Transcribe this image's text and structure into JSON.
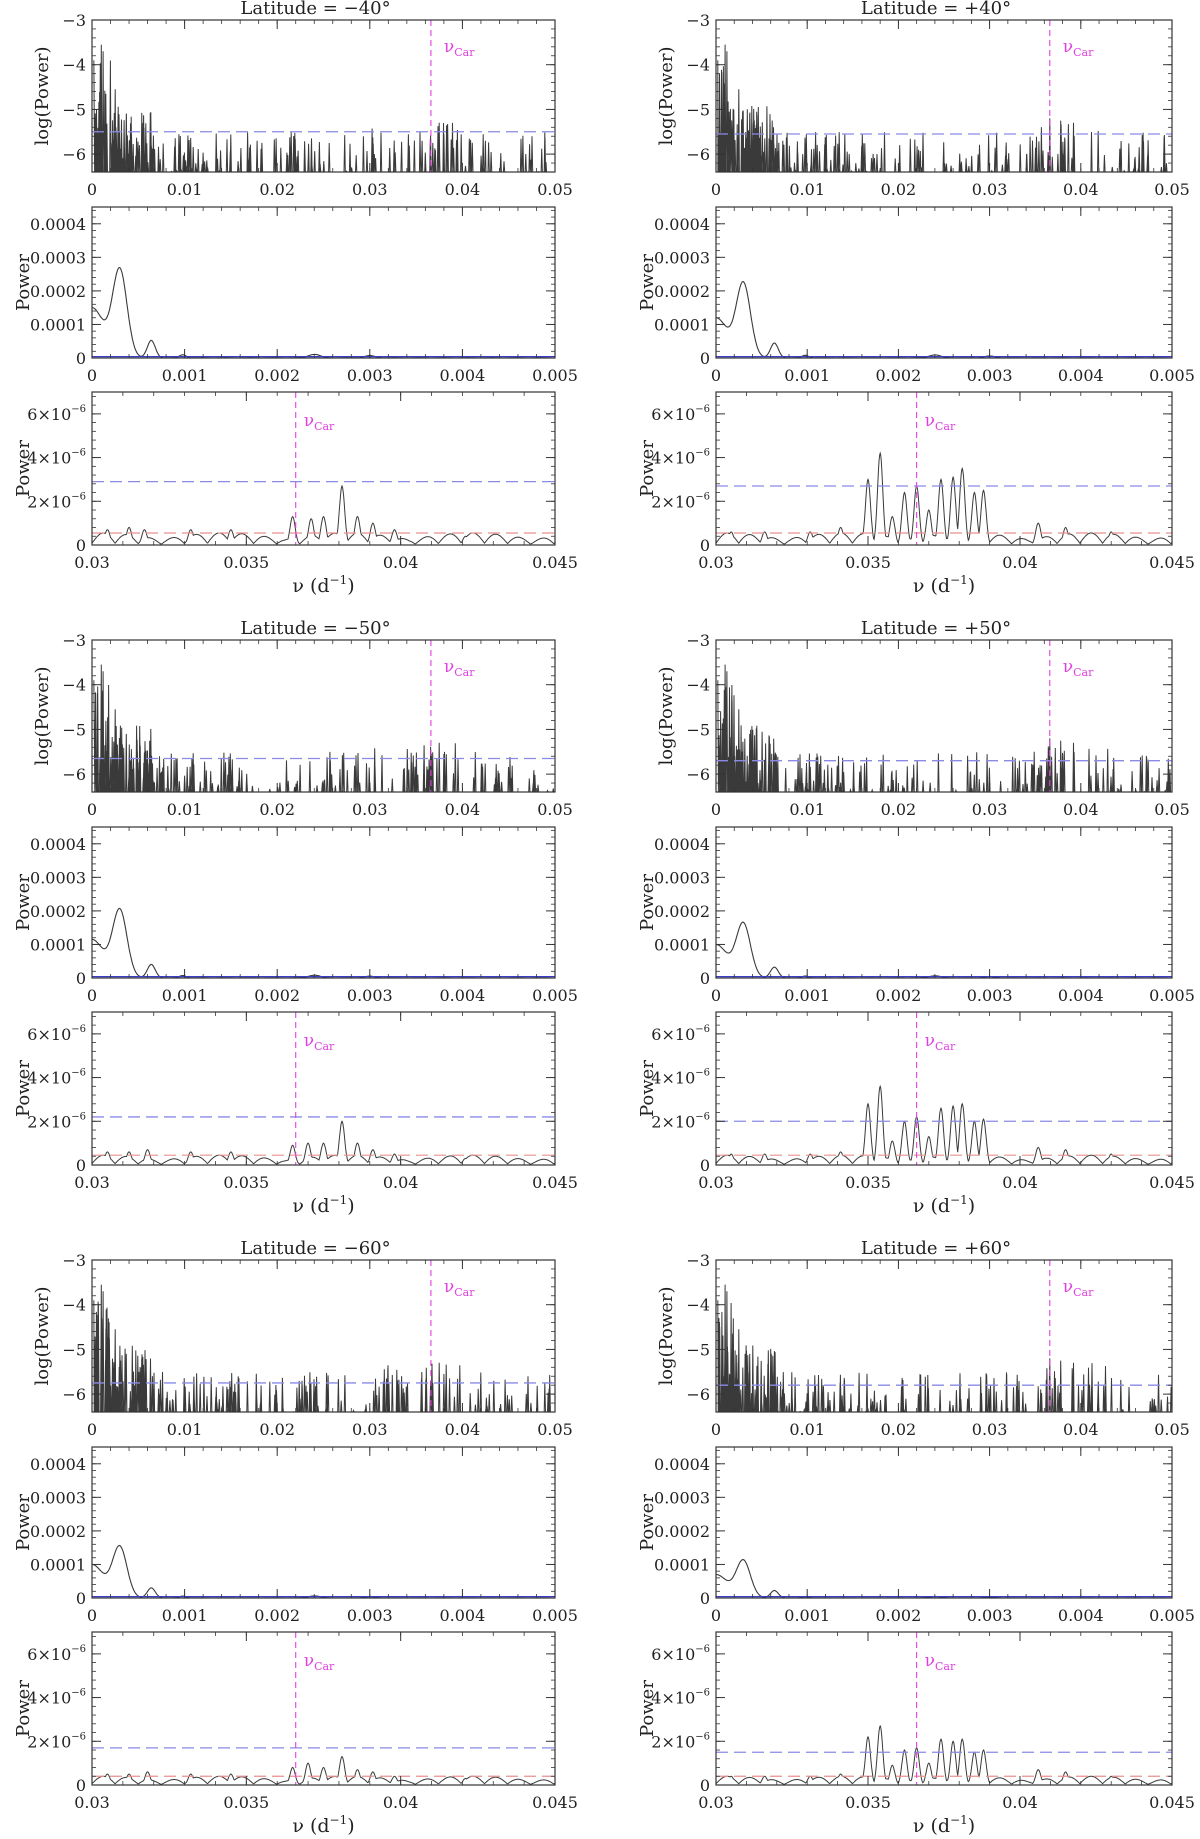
{
  "colors": {
    "frame": "#333333",
    "trace": "#3a3a3a",
    "nu_car": "#e040e0",
    "threshold_blue": "#8a8ae6",
    "threshold_red": "#e89090",
    "baseline_blue": "#3a3acc"
  },
  "chart_data": {
    "type": "line",
    "nu_car_label": "ν",
    "nu_car_sub": "Car",
    "nu_car_value": 0.0366,
    "x_axis_label": {
      "symbol": "ν",
      "text": " (d",
      "exp": "−1",
      "close": ")"
    },
    "ylabel_log": "log(Power)",
    "ylabel_lin": "Power",
    "panel_types": {
      "log": {
        "xlim": [
          0,
          0.05
        ],
        "ylim": [
          -6.4,
          -3
        ],
        "xticks": [
          "0",
          "0.01",
          "0.02",
          "0.03",
          "0.04",
          "0.05"
        ],
        "xtick_values": [
          0,
          0.01,
          0.02,
          0.03,
          0.04,
          0.05
        ],
        "yticks": [
          "−3",
          "−4",
          "−5",
          "−6"
        ],
        "ytick_values": [
          -3,
          -4,
          -5,
          -6
        ]
      },
      "low": {
        "xlim": [
          0,
          0.005
        ],
        "ylim": [
          0,
          0.00045
        ],
        "xticks": [
          "0",
          "0.001",
          "0.002",
          "0.003",
          "0.004",
          "0.005"
        ],
        "xtick_values": [
          0,
          0.001,
          0.002,
          0.003,
          0.004,
          0.005
        ],
        "yticks": [
          "0",
          "0.0001",
          "0.0002",
          "0.0003",
          "0.0004"
        ],
        "ytick_values": [
          0,
          0.0001,
          0.0002,
          0.0003,
          0.0004
        ]
      },
      "zoom": {
        "xlim": [
          0.03,
          0.045
        ],
        "ylim": [
          0,
          7e-06
        ],
        "xticks": [
          "0.03",
          "0.035",
          "0.04",
          "0.045"
        ],
        "xtick_values": [
          0.03,
          0.035,
          0.04,
          0.045
        ],
        "yticks": [
          "0",
          "2×10",
          "4×10",
          "6×10"
        ],
        "ytick_exp": "−6",
        "ytick_values": [
          0,
          2e-06,
          4e-06,
          6e-06
        ]
      }
    },
    "groups": [
      {
        "col": 0,
        "row": 0,
        "title": "Latitude = −40°",
        "log_threshold": -5.5,
        "low_peak": 0.00026,
        "low_start": 0.00015,
        "zoom_threshold": 2.9e-06,
        "zoom_red": 5.5e-07,
        "zoom_peaks": [
          [
            0.0305,
            7e-07
          ],
          [
            0.0312,
            8e-07
          ],
          [
            0.0317,
            7e-07
          ],
          [
            0.0332,
            7e-07
          ],
          [
            0.0345,
            7e-07
          ],
          [
            0.0365,
            1.3e-06
          ],
          [
            0.0371,
            1.2e-06
          ],
          [
            0.0375,
            1.3e-06
          ],
          [
            0.0381,
            2.7e-06
          ],
          [
            0.0386,
            1.3e-06
          ],
          [
            0.0391,
            1e-06
          ],
          [
            0.0398,
            7e-07
          ],
          [
            0.0421,
            4e-07
          ]
        ]
      },
      {
        "col": 1,
        "row": 0,
        "title": "Latitude = +40°",
        "log_threshold": -5.55,
        "low_peak": 0.00022,
        "low_start": 0.00012,
        "zoom_threshold": 2.7e-06,
        "zoom_red": 5.5e-07,
        "zoom_peaks": [
          [
            0.0305,
            6e-07
          ],
          [
            0.0316,
            6e-07
          ],
          [
            0.0331,
            6e-07
          ],
          [
            0.0341,
            8e-07
          ],
          [
            0.035,
            3e-06
          ],
          [
            0.0354,
            4.2e-06
          ],
          [
            0.0358,
            1.3e-06
          ],
          [
            0.0362,
            2.4e-06
          ],
          [
            0.0366,
            2.7e-06
          ],
          [
            0.037,
            1.6e-06
          ],
          [
            0.0374,
            3e-06
          ],
          [
            0.0378,
            3.1e-06
          ],
          [
            0.0381,
            3.5e-06
          ],
          [
            0.0385,
            2.4e-06
          ],
          [
            0.0388,
            2.5e-06
          ],
          [
            0.0406,
            1e-06
          ],
          [
            0.0415,
            8e-07
          ],
          [
            0.043,
            6e-07
          ]
        ]
      },
      {
        "col": 0,
        "row": 1,
        "title": "Latitude = −50°",
        "log_threshold": -5.65,
        "low_peak": 0.0002,
        "low_start": 0.000115,
        "zoom_threshold": 2.2e-06,
        "zoom_red": 4.5e-07,
        "zoom_peaks": [
          [
            0.0305,
            6e-07
          ],
          [
            0.0312,
            6e-07
          ],
          [
            0.0318,
            7e-07
          ],
          [
            0.0332,
            6e-07
          ],
          [
            0.0345,
            6e-07
          ],
          [
            0.0365,
            9e-07
          ],
          [
            0.037,
            1e-06
          ],
          [
            0.0375,
            1e-06
          ],
          [
            0.0381,
            2e-06
          ],
          [
            0.0386,
            1e-06
          ],
          [
            0.0391,
            7e-07
          ],
          [
            0.0398,
            5e-07
          ],
          [
            0.0421,
            3e-07
          ]
        ]
      },
      {
        "col": 1,
        "row": 1,
        "title": "Latitude = +50°",
        "log_threshold": -5.7,
        "low_peak": 0.00016,
        "low_start": 0.0001,
        "zoom_threshold": 2e-06,
        "zoom_red": 4.5e-07,
        "zoom_peaks": [
          [
            0.0305,
            5e-07
          ],
          [
            0.0316,
            5e-07
          ],
          [
            0.0331,
            5e-07
          ],
          [
            0.0341,
            6e-07
          ],
          [
            0.035,
            2.8e-06
          ],
          [
            0.0354,
            3.6e-06
          ],
          [
            0.0358,
            1.1e-06
          ],
          [
            0.0362,
            2e-06
          ],
          [
            0.0366,
            2.2e-06
          ],
          [
            0.037,
            1.3e-06
          ],
          [
            0.0374,
            2.6e-06
          ],
          [
            0.0378,
            2.7e-06
          ],
          [
            0.0381,
            2.8e-06
          ],
          [
            0.0385,
            2e-06
          ],
          [
            0.0388,
            2.1e-06
          ],
          [
            0.0406,
            8e-07
          ],
          [
            0.0415,
            7e-07
          ],
          [
            0.043,
            5e-07
          ]
        ]
      },
      {
        "col": 0,
        "row": 2,
        "title": "Latitude = −60°",
        "log_threshold": -5.75,
        "low_peak": 0.00015,
        "low_start": 0.0001,
        "zoom_threshold": 1.7e-06,
        "zoom_red": 4e-07,
        "zoom_peaks": [
          [
            0.0305,
            5e-07
          ],
          [
            0.0312,
            5e-07
          ],
          [
            0.0318,
            6e-07
          ],
          [
            0.0332,
            5e-07
          ],
          [
            0.0345,
            5e-07
          ],
          [
            0.0365,
            8e-07
          ],
          [
            0.037,
            1e-06
          ],
          [
            0.0375,
            8e-07
          ],
          [
            0.0381,
            1.3e-06
          ],
          [
            0.0386,
            7e-07
          ],
          [
            0.0391,
            6e-07
          ],
          [
            0.0398,
            4e-07
          ],
          [
            0.0421,
            3e-07
          ]
        ]
      },
      {
        "col": 1,
        "row": 2,
        "title": "Latitude = +60°",
        "log_threshold": -5.8,
        "low_peak": 0.00011,
        "low_start": 7e-05,
        "zoom_threshold": 1.5e-06,
        "zoom_red": 4e-07,
        "zoom_peaks": [
          [
            0.0305,
            4e-07
          ],
          [
            0.0316,
            4e-07
          ],
          [
            0.0331,
            4e-07
          ],
          [
            0.0341,
            5e-07
          ],
          [
            0.035,
            2.2e-06
          ],
          [
            0.0354,
            2.7e-06
          ],
          [
            0.0358,
            9e-07
          ],
          [
            0.0362,
            1.6e-06
          ],
          [
            0.0366,
            1.7e-06
          ],
          [
            0.037,
            1e-06
          ],
          [
            0.0374,
            2.1e-06
          ],
          [
            0.0378,
            2e-06
          ],
          [
            0.0381,
            2.1e-06
          ],
          [
            0.0385,
            1.5e-06
          ],
          [
            0.0388,
            1.6e-06
          ],
          [
            0.0406,
            7e-07
          ],
          [
            0.0415,
            6e-07
          ],
          [
            0.043,
            4e-07
          ]
        ]
      }
    ]
  }
}
